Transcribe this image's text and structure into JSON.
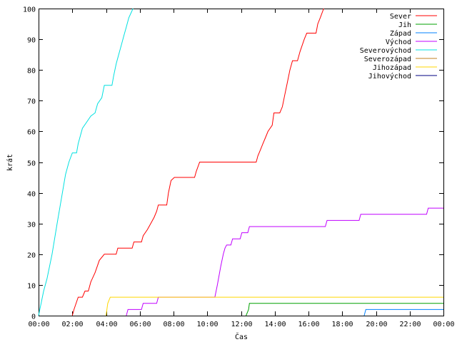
{
  "chart_data": {
    "type": "line",
    "title": "",
    "xlabel": "Čas",
    "ylabel": "krát",
    "xlim": [
      0,
      24
    ],
    "ylim": [
      0,
      100
    ],
    "x_ticks": [
      {
        "v": 0,
        "label": "00:00"
      },
      {
        "v": 2,
        "label": "02:00"
      },
      {
        "v": 4,
        "label": "04:00"
      },
      {
        "v": 6,
        "label": "06:00"
      },
      {
        "v": 8,
        "label": "08:00"
      },
      {
        "v": 10,
        "label": "10:00"
      },
      {
        "v": 12,
        "label": "12:00"
      },
      {
        "v": 14,
        "label": "14:00"
      },
      {
        "v": 16,
        "label": "16:00"
      },
      {
        "v": 18,
        "label": "18:00"
      },
      {
        "v": 20,
        "label": "20:00"
      },
      {
        "v": 22,
        "label": "22:00"
      },
      {
        "v": 24,
        "label": "00:00"
      }
    ],
    "y_ticks": [
      {
        "v": 0,
        "label": "0"
      },
      {
        "v": 10,
        "label": "10"
      },
      {
        "v": 20,
        "label": "20"
      },
      {
        "v": 30,
        "label": "30"
      },
      {
        "v": 40,
        "label": "40"
      },
      {
        "v": 50,
        "label": "50"
      },
      {
        "v": 60,
        "label": "60"
      },
      {
        "v": 70,
        "label": "70"
      },
      {
        "v": 80,
        "label": "80"
      },
      {
        "v": 90,
        "label": "90"
      },
      {
        "v": 100,
        "label": "100"
      }
    ],
    "grid": false,
    "legend_position": "top-right",
    "series": [
      {
        "name": "Sever",
        "color": "#ff0000",
        "points": [
          [
            2.0,
            0
          ],
          [
            2.1,
            2
          ],
          [
            2.35,
            6
          ],
          [
            2.6,
            6
          ],
          [
            2.75,
            8
          ],
          [
            2.95,
            8
          ],
          [
            3.1,
            11
          ],
          [
            3.35,
            14
          ],
          [
            3.6,
            18
          ],
          [
            3.9,
            20
          ],
          [
            4.6,
            20
          ],
          [
            4.7,
            22
          ],
          [
            5.55,
            22
          ],
          [
            5.65,
            24
          ],
          [
            6.1,
            24
          ],
          [
            6.2,
            26
          ],
          [
            6.45,
            28
          ],
          [
            6.65,
            30
          ],
          [
            6.85,
            32
          ],
          [
            7.0,
            34
          ],
          [
            7.1,
            36
          ],
          [
            7.6,
            36
          ],
          [
            7.7,
            40
          ],
          [
            7.85,
            44
          ],
          [
            8.05,
            45
          ],
          [
            9.25,
            45
          ],
          [
            9.35,
            47
          ],
          [
            9.55,
            50
          ],
          [
            12.9,
            50
          ],
          [
            13.0,
            52
          ],
          [
            13.15,
            54
          ],
          [
            13.3,
            56
          ],
          [
            13.45,
            58
          ],
          [
            13.6,
            60
          ],
          [
            13.85,
            62
          ],
          [
            13.95,
            66
          ],
          [
            14.3,
            66
          ],
          [
            14.45,
            68
          ],
          [
            14.6,
            72
          ],
          [
            14.75,
            76
          ],
          [
            14.9,
            80
          ],
          [
            15.05,
            83
          ],
          [
            15.35,
            83
          ],
          [
            15.5,
            86
          ],
          [
            15.75,
            90
          ],
          [
            15.9,
            92
          ],
          [
            16.45,
            92
          ],
          [
            16.55,
            95
          ],
          [
            16.7,
            97
          ],
          [
            16.9,
            100
          ]
        ]
      },
      {
        "name": "Jih",
        "color": "#00a000",
        "points": [
          [
            12.3,
            0
          ],
          [
            12.45,
            2
          ],
          [
            12.5,
            4
          ],
          [
            24,
            4
          ]
        ]
      },
      {
        "name": "Západ",
        "color": "#0080ff",
        "points": [
          [
            19.3,
            0
          ],
          [
            19.4,
            2
          ],
          [
            24,
            2
          ]
        ]
      },
      {
        "name": "Východ",
        "color": "#c000ff",
        "points": [
          [
            5.2,
            0
          ],
          [
            5.3,
            2
          ],
          [
            6.1,
            2
          ],
          [
            6.2,
            4
          ],
          [
            7.0,
            4
          ],
          [
            7.1,
            6
          ],
          [
            10.45,
            6
          ],
          [
            10.6,
            10
          ],
          [
            10.8,
            16
          ],
          [
            10.95,
            20
          ],
          [
            11.05,
            22
          ],
          [
            11.15,
            23
          ],
          [
            11.4,
            23
          ],
          [
            11.5,
            25
          ],
          [
            11.95,
            25
          ],
          [
            12.05,
            27
          ],
          [
            12.4,
            27
          ],
          [
            12.5,
            29
          ],
          [
            17.0,
            29
          ],
          [
            17.1,
            31
          ],
          [
            19.0,
            31
          ],
          [
            19.1,
            33
          ],
          [
            23.0,
            33
          ],
          [
            23.1,
            35
          ],
          [
            24,
            35
          ]
        ]
      },
      {
        "name": "Severovýchod",
        "color": "#00e0e0",
        "points": [
          [
            0,
            0
          ],
          [
            0.3,
            8
          ],
          [
            0.5,
            12
          ],
          [
            0.8,
            20
          ],
          [
            1.1,
            30
          ],
          [
            1.35,
            38
          ],
          [
            1.6,
            46
          ],
          [
            1.8,
            50
          ],
          [
            2.0,
            53
          ],
          [
            2.25,
            53
          ],
          [
            2.35,
            56
          ],
          [
            2.6,
            61
          ],
          [
            2.85,
            63
          ],
          [
            3.1,
            65
          ],
          [
            3.35,
            66
          ],
          [
            3.5,
            69
          ],
          [
            3.75,
            71
          ],
          [
            3.9,
            75
          ],
          [
            4.35,
            75
          ],
          [
            4.45,
            78
          ],
          [
            4.6,
            82
          ],
          [
            4.75,
            85
          ],
          [
            4.9,
            88
          ],
          [
            5.05,
            91
          ],
          [
            5.2,
            94
          ],
          [
            5.35,
            97
          ],
          [
            5.6,
            100
          ]
        ]
      },
      {
        "name": "Severozápad",
        "color": "#c08020",
        "points": []
      },
      {
        "name": "Jihozápad",
        "color": "#ffd700",
        "points": [
          [
            4.0,
            0
          ],
          [
            4.1,
            4
          ],
          [
            4.25,
            6
          ],
          [
            24,
            6
          ]
        ]
      },
      {
        "name": "Jihovýchod",
        "color": "#000080",
        "points": []
      }
    ]
  }
}
